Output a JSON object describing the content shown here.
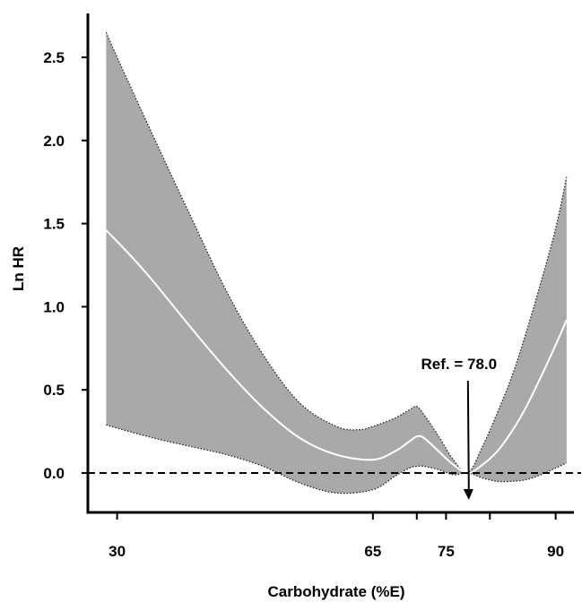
{
  "chart_data": {
    "type": "line",
    "title": "",
    "xlabel": "Carbohydrate (%E)",
    "ylabel": "Ln HR",
    "xlim": [
      26,
      92.5
    ],
    "ylim": [
      -0.22,
      2.75
    ],
    "x_ticks": [
      30,
      65,
      75,
      90
    ],
    "x_ticks_extra": [
      71,
      81
    ],
    "y_ticks": [
      0.0,
      0.5,
      1.0,
      1.5,
      2.0,
      2.5
    ],
    "y_tick_labels": [
      "0.0",
      "0.5",
      "1.0",
      "1.5",
      "2.0",
      "2.5"
    ],
    "x_tick_labels": [
      "30",
      "65",
      "75",
      "90"
    ],
    "series": [
      {
        "role": "estimate",
        "color": "#ffffff",
        "x": [
          28.5,
          32,
          35,
          40,
          45,
          50,
          55,
          60,
          65,
          68,
          70,
          71,
          72,
          74,
          76,
          78,
          80,
          82,
          84,
          86,
          88,
          90,
          91.5
        ],
        "y": [
          1.46,
          1.3,
          1.15,
          0.88,
          0.62,
          0.39,
          0.21,
          0.11,
          0.08,
          0.13,
          0.19,
          0.22,
          0.21,
          0.13,
          0.05,
          0.0,
          0.05,
          0.13,
          0.25,
          0.4,
          0.58,
          0.77,
          0.92
        ]
      },
      {
        "role": "upper_ci",
        "x": [
          28.5,
          30,
          35,
          40,
          45,
          50,
          55,
          60,
          63,
          65,
          68,
          70,
          71,
          72,
          74,
          76,
          78,
          80,
          82,
          84,
          86,
          88,
          90,
          91.5
        ],
        "y": [
          2.65,
          2.5,
          2.02,
          1.55,
          1.09,
          0.71,
          0.42,
          0.28,
          0.26,
          0.28,
          0.33,
          0.38,
          0.4,
          0.35,
          0.22,
          0.08,
          0.0,
          0.16,
          0.36,
          0.58,
          0.85,
          1.15,
          1.47,
          1.78
        ]
      },
      {
        "role": "lower_ci",
        "x": [
          28.5,
          30,
          35,
          40,
          45,
          50,
          55,
          60,
          65,
          68,
          70,
          71,
          72,
          74,
          76,
          78,
          80,
          82,
          84,
          86,
          88,
          90,
          91.5
        ],
        "y": [
          0.29,
          0.27,
          0.21,
          0.16,
          0.11,
          0.04,
          -0.06,
          -0.12,
          -0.1,
          -0.02,
          0.03,
          0.04,
          0.04,
          0.02,
          -0.01,
          0.0,
          -0.03,
          -0.05,
          -0.05,
          -0.04,
          -0.01,
          0.03,
          0.06
        ]
      }
    ],
    "reference_line": {
      "y": 0.0,
      "style": "dashed"
    },
    "annotation": {
      "text": "Ref. = 78.0",
      "x": 78.0
    },
    "band_color": "#a9a9a9",
    "grid": false,
    "legend": "none"
  }
}
